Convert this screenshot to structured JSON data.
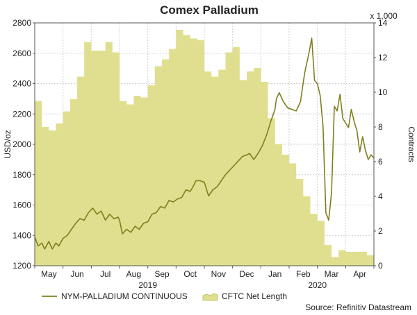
{
  "chart_data": {
    "type": "area",
    "title": "Comex Palladium",
    "ylabel_left": "USD/oz",
    "ylabel_right": "Contracts",
    "right_multiplier": "x 1,000",
    "x_range": [
      0,
      12
    ],
    "ylim_left": [
      1200,
      2800
    ],
    "ylim_right": [
      0,
      14
    ],
    "y_ticks_left": [
      "1200",
      "1400",
      "1600",
      "1800",
      "2000",
      "2200",
      "2400",
      "2600",
      "2800"
    ],
    "y_ticks_right": [
      "0",
      "2",
      "4",
      "6",
      "8",
      "10",
      "12",
      "14"
    ],
    "month_labels": [
      {
        "label": "May",
        "x": 0.5
      },
      {
        "label": "Jun",
        "x": 1.5
      },
      {
        "label": "Jul",
        "x": 2.5
      },
      {
        "label": "Aug",
        "x": 3.5
      },
      {
        "label": "Sep",
        "x": 4.5
      },
      {
        "label": "Oct",
        "x": 5.5
      },
      {
        "label": "Nov",
        "x": 6.5
      },
      {
        "label": "Dec",
        "x": 7.5
      },
      {
        "label": "Jan",
        "x": 8.5
      },
      {
        "label": "Feb",
        "x": 9.5
      },
      {
        "label": "Mar",
        "x": 10.5
      },
      {
        "label": "Apr",
        "x": 11.5
      }
    ],
    "year_labels": [
      {
        "label": "2019",
        "x": 4.0
      },
      {
        "label": "2020",
        "x": 10.0
      }
    ],
    "legend": [
      "NYM-PALLADIUM CONTINUOUS",
      "CFTC Net Length"
    ],
    "source": "Source: Refinitiv Datastream",
    "colors": {
      "line": "#7f7f1f",
      "area": "#dfdf8f",
      "grid": "#cfcfcf",
      "axis": "#555555"
    },
    "series": [
      {
        "name": "CFTC Net Length",
        "axis": "right",
        "kind": "step-area",
        "x": [
          0.0,
          0.25,
          0.5,
          0.75,
          1.0,
          1.25,
          1.5,
          1.75,
          2.0,
          2.25,
          2.5,
          2.75,
          3.0,
          3.25,
          3.5,
          3.75,
          4.0,
          4.25,
          4.5,
          4.75,
          5.0,
          5.25,
          5.5,
          5.75,
          6.0,
          6.25,
          6.5,
          6.75,
          7.0,
          7.25,
          7.5,
          7.75,
          8.0,
          8.25,
          8.5,
          8.75,
          9.0,
          9.25,
          9.5,
          9.75,
          10.0,
          10.25,
          10.5,
          10.75,
          11.0,
          11.25,
          11.5,
          11.75,
          12.0
        ],
        "values": [
          9.5,
          8.0,
          7.8,
          8.2,
          8.9,
          9.6,
          10.9,
          12.9,
          12.4,
          12.4,
          12.9,
          12.3,
          9.5,
          9.3,
          9.8,
          9.7,
          10.4,
          11.5,
          11.9,
          12.5,
          13.6,
          13.3,
          13.1,
          13.0,
          11.2,
          10.9,
          11.3,
          12.3,
          12.6,
          10.7,
          11.2,
          11.4,
          10.6,
          8.5,
          7.0,
          6.4,
          5.9,
          5.0,
          4.0,
          3.0,
          2.6,
          1.2,
          0.5,
          0.9,
          0.8,
          0.8,
          0.8,
          0.6,
          0.6
        ]
      },
      {
        "name": "NYM-PALLADIUM CONTINUOUS",
        "axis": "left",
        "kind": "line",
        "x": [
          0.0,
          0.12,
          0.25,
          0.35,
          0.5,
          0.62,
          0.75,
          0.85,
          1.0,
          1.15,
          1.3,
          1.45,
          1.6,
          1.75,
          1.9,
          2.05,
          2.2,
          2.35,
          2.5,
          2.65,
          2.8,
          2.95,
          3.0,
          3.1,
          3.25,
          3.4,
          3.55,
          3.7,
          3.85,
          4.0,
          4.15,
          4.3,
          4.45,
          4.6,
          4.75,
          4.9,
          5.05,
          5.2,
          5.35,
          5.5,
          5.6,
          5.7,
          5.85,
          6.0,
          6.15,
          6.3,
          6.45,
          6.6,
          6.75,
          6.9,
          7.05,
          7.2,
          7.35,
          7.5,
          7.6,
          7.75,
          7.9,
          8.05,
          8.2,
          8.35,
          8.5,
          8.55,
          8.65,
          8.8,
          8.95,
          9.1,
          9.25,
          9.4,
          9.55,
          9.7,
          9.8,
          9.9,
          10.0,
          10.1,
          10.2,
          10.3,
          10.4,
          10.5,
          10.6,
          10.7,
          10.8,
          10.9,
          11.0,
          11.1,
          11.2,
          11.3,
          11.4,
          11.5,
          11.6,
          11.7,
          11.8,
          11.9,
          12.0
        ],
        "values": [
          1390,
          1330,
          1350,
          1310,
          1360,
          1310,
          1350,
          1330,
          1380,
          1400,
          1440,
          1480,
          1510,
          1500,
          1550,
          1580,
          1540,
          1560,
          1500,
          1540,
          1510,
          1520,
          1500,
          1410,
          1440,
          1420,
          1460,
          1440,
          1480,
          1490,
          1540,
          1550,
          1590,
          1580,
          1630,
          1620,
          1640,
          1650,
          1700,
          1690,
          1720,
          1760,
          1760,
          1750,
          1660,
          1700,
          1720,
          1760,
          1800,
          1830,
          1860,
          1890,
          1920,
          1930,
          1940,
          1900,
          1940,
          1990,
          2060,
          2150,
          2230,
          2300,
          2340,
          2280,
          2240,
          2230,
          2220,
          2280,
          2470,
          2600,
          2700,
          2420,
          2400,
          2320,
          2120,
          1550,
          1500,
          1680,
          2250,
          2220,
          2330,
          2170,
          2140,
          2110,
          2230,
          2150,
          2090,
          1950,
          2050,
          1960,
          1900,
          1930,
          1910
        ]
      }
    ]
  }
}
